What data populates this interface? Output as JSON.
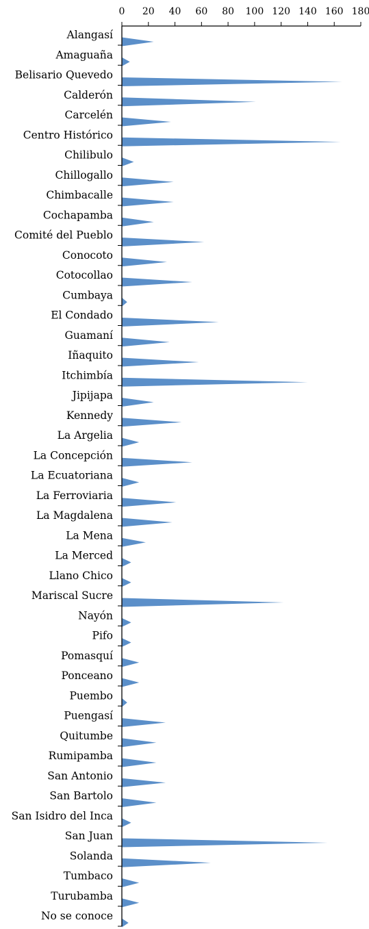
{
  "chart_data": {
    "type": "bar",
    "orientation": "horizontal",
    "bar_shape": "triangle",
    "title": "",
    "xlabel": "",
    "ylabel": "",
    "xlim": [
      0,
      180
    ],
    "x_ticks": [
      0,
      20,
      40,
      60,
      80,
      100,
      120,
      140,
      160,
      180
    ],
    "x_axis_position": "top",
    "grid": false,
    "legend": "none",
    "bar_color": "#5b8fc9",
    "categories": [
      "Alangasí",
      "Amaguaña",
      "Belisario Quevedo",
      "Calderón",
      "Carcelén",
      "Centro Histórico",
      "Chilibulo",
      "Chillogallo",
      "Chimbacalle",
      "Cochapamba",
      "Comité del Pueblo",
      "Conocoto",
      "Cotocollao",
      "Cumbaya",
      "El Condado",
      "Guamaní",
      "Iñaquito",
      "Itchimbía",
      "Jipijapa",
      "Kennedy",
      "La Argelia",
      "La Concepción",
      "La Ecuatoriana",
      "La Ferroviaria",
      "La Magdalena",
      "La Mena",
      "La Merced",
      "Llano Chico",
      "Mariscal Sucre",
      "Nayón",
      "Pifo",
      "Pomasquí",
      "Ponceano",
      "Puembo",
      "Puengasí",
      "Quitumbe",
      "Rumipamba",
      "San Antonio",
      "San Bartolo",
      "San Isidro del Inca",
      "San Juan",
      "Solanda",
      "Tumbaco",
      "Turubamba",
      "No se conoce"
    ],
    "values": [
      24,
      6,
      166,
      101,
      37,
      165,
      9,
      39,
      39,
      24,
      62,
      34,
      53,
      4,
      73,
      36,
      58,
      140,
      24,
      45,
      13,
      53,
      13,
      41,
      38,
      18,
      7,
      7,
      122,
      7,
      7,
      13,
      13,
      4,
      33,
      26,
      26,
      33,
      26,
      7,
      155,
      67,
      13,
      13,
      5
    ]
  }
}
